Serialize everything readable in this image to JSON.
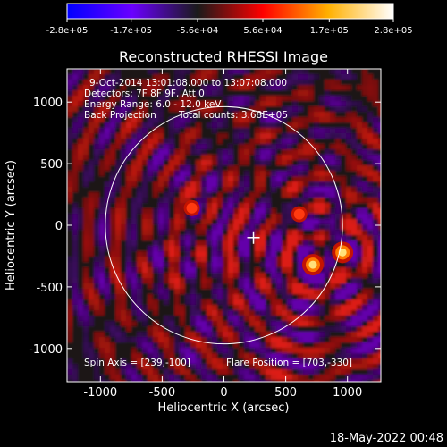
{
  "chart_data": {
    "type": "heatmap",
    "title": "Reconstructed RHESSI Image",
    "xlabel": "Heliocentric X (arcsec)",
    "ylabel": "Heliocentric Y (arcsec)",
    "xlim": [
      -1270,
      1270
    ],
    "ylim": [
      -1270,
      1270
    ],
    "x_ticks": [
      "-1000",
      "-500",
      "0",
      "500",
      "1000"
    ],
    "x_tick_values": [
      -1000,
      -500,
      0,
      500,
      1000
    ],
    "y_ticks": [
      "-1000",
      "-500",
      "0",
      "500",
      "1000"
    ],
    "y_tick_values": [
      -1000,
      -500,
      0,
      500,
      1000
    ],
    "colorbar": {
      "range": [
        -280000,
        280000
      ],
      "tick_labels": [
        "-2.8e+05",
        "-1.7e+05",
        "-5.6e+04",
        "5.6e+04",
        "1.7e+05",
        "2.8e+05"
      ],
      "tick_values": [
        -280000,
        -170000,
        -56000,
        56000,
        170000,
        280000
      ],
      "colors": [
        "#0000ff",
        "#6a00ff",
        "#1a1a1a",
        "#ff0000",
        "#ffb000",
        "#ffffff"
      ]
    },
    "annotations": {
      "line1": "9-Oct-2014 13:01:08.000 to 13:07:08.000",
      "line2": "Detectors: 7F 8F 9F, Att 0",
      "line3": "Energy Range: 6.0 - 12.0 keV",
      "line4a": "Back Projection",
      "line4b": "Total counts: 3.68E+05",
      "spin_axis": "Spin Axis = [239,-100]",
      "flare_position": "Flare Position = [703,-330]"
    },
    "sources": [
      {
        "x": 720,
        "y": -320,
        "intensity": 1.0
      },
      {
        "x": 960,
        "y": -220,
        "intensity": 0.95
      },
      {
        "x": 610,
        "y": 90,
        "intensity": 0.65
      },
      {
        "x": -260,
        "y": 140,
        "intensity": 0.6
      }
    ],
    "marker": {
      "x": 239,
      "y": -100
    },
    "solar_limb_radius": 960
  },
  "footer": {
    "date": "18-May-2022 00:48"
  }
}
